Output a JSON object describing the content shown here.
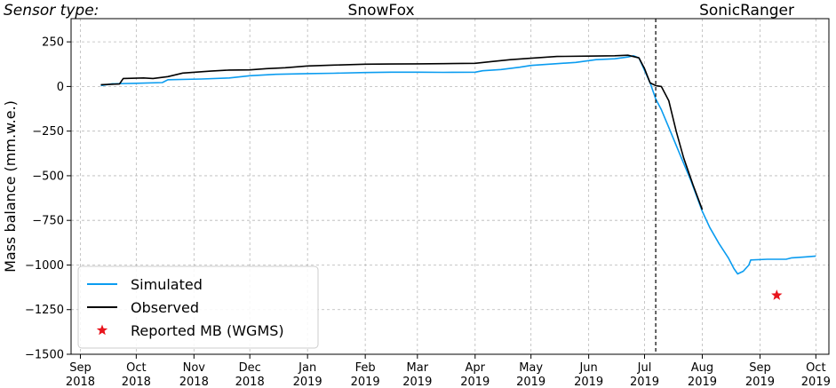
{
  "chart_data": {
    "type": "line",
    "ylabel": "Mass balance (mm.w.e.)",
    "ylim": [
      -1500,
      380
    ],
    "yticks": [
      250,
      0,
      -250,
      -500,
      -750,
      -1000,
      -1250,
      -1500
    ],
    "ytick_labels": [
      "250",
      "0",
      "−250",
      "−500",
      "−750",
      "−1000",
      "−1250",
      "−1500"
    ],
    "xlim": [
      "2018-08-27",
      "2019-10-08"
    ],
    "xticks": [
      {
        "date": "2018-09-01",
        "month": "Sep",
        "year": "2018"
      },
      {
        "date": "2018-10-01",
        "month": "Oct",
        "year": "2018"
      },
      {
        "date": "2018-11-01",
        "month": "Nov",
        "year": "2018"
      },
      {
        "date": "2018-12-01",
        "month": "Dec",
        "year": "2018"
      },
      {
        "date": "2019-01-01",
        "month": "Jan",
        "year": "2019"
      },
      {
        "date": "2019-02-01",
        "month": "Feb",
        "year": "2019"
      },
      {
        "date": "2019-03-01",
        "month": "Mar",
        "year": "2019"
      },
      {
        "date": "2019-04-01",
        "month": "Apr",
        "year": "2019"
      },
      {
        "date": "2019-05-01",
        "month": "May",
        "year": "2019"
      },
      {
        "date": "2019-06-01",
        "month": "Jun",
        "year": "2019"
      },
      {
        "date": "2019-07-01",
        "month": "Jul",
        "year": "2019"
      },
      {
        "date": "2019-08-01",
        "month": "Aug",
        "year": "2019"
      },
      {
        "date": "2019-09-01",
        "month": "Sep",
        "year": "2019"
      },
      {
        "date": "2019-10-01",
        "month": "Oct",
        "year": "2019"
      }
    ],
    "grid": true,
    "legend_position": "lower-left",
    "annotations": {
      "sensor_type_label": "Sensor type:",
      "left_sensor": "SnowFox",
      "right_sensor": "SonicRanger",
      "sensor_switch_date": "2019-07-07"
    },
    "series": [
      {
        "name": "Simulated",
        "color": "#0a9cf0",
        "points": [
          [
            "2018-09-12",
            5
          ],
          [
            "2018-09-18",
            15
          ],
          [
            "2018-10-01",
            18
          ],
          [
            "2018-10-15",
            22
          ],
          [
            "2018-10-18",
            38
          ],
          [
            "2018-11-05",
            42
          ],
          [
            "2018-11-20",
            48
          ],
          [
            "2018-12-01",
            60
          ],
          [
            "2018-12-15",
            68
          ],
          [
            "2019-01-01",
            72
          ],
          [
            "2019-01-15",
            74
          ],
          [
            "2019-02-01",
            78
          ],
          [
            "2019-02-15",
            80
          ],
          [
            "2019-03-01",
            80
          ],
          [
            "2019-03-15",
            79
          ],
          [
            "2019-04-01",
            80
          ],
          [
            "2019-04-05",
            88
          ],
          [
            "2019-04-15",
            95
          ],
          [
            "2019-04-25",
            108
          ],
          [
            "2019-05-01",
            118
          ],
          [
            "2019-05-15",
            128
          ],
          [
            "2019-05-25",
            135
          ],
          [
            "2019-06-05",
            150
          ],
          [
            "2019-06-15",
            155
          ],
          [
            "2019-06-22",
            165
          ],
          [
            "2019-06-25",
            172
          ],
          [
            "2019-06-28",
            160
          ],
          [
            "2019-07-01",
            90
          ],
          [
            "2019-07-04",
            20
          ],
          [
            "2019-07-07",
            -70
          ],
          [
            "2019-07-10",
            -130
          ],
          [
            "2019-07-14",
            -230
          ],
          [
            "2019-07-20",
            -380
          ],
          [
            "2019-07-26",
            -530
          ],
          [
            "2019-08-01",
            -700
          ],
          [
            "2019-08-05",
            -790
          ],
          [
            "2019-08-10",
            -880
          ],
          [
            "2019-08-15",
            -960
          ],
          [
            "2019-08-18",
            -1020
          ],
          [
            "2019-08-20",
            -1050
          ],
          [
            "2019-08-23",
            -1035
          ],
          [
            "2019-08-26",
            -1000
          ],
          [
            "2019-08-27",
            -972
          ],
          [
            "2019-09-05",
            -968
          ],
          [
            "2019-09-15",
            -968
          ],
          [
            "2019-09-18",
            -960
          ],
          [
            "2019-09-25",
            -955
          ],
          [
            "2019-10-01",
            -950
          ]
        ]
      },
      {
        "name": "Observed",
        "color": "#000000",
        "points": [
          [
            "2018-09-12",
            10
          ],
          [
            "2018-09-22",
            14
          ],
          [
            "2018-09-24",
            45
          ],
          [
            "2018-10-05",
            48
          ],
          [
            "2018-10-10",
            45
          ],
          [
            "2018-10-18",
            55
          ],
          [
            "2018-10-26",
            75
          ],
          [
            "2018-11-10",
            86
          ],
          [
            "2018-11-20",
            92
          ],
          [
            "2018-12-01",
            93
          ],
          [
            "2018-12-10",
            100
          ],
          [
            "2018-12-20",
            105
          ],
          [
            "2019-01-01",
            115
          ],
          [
            "2019-01-15",
            120
          ],
          [
            "2019-02-01",
            125
          ],
          [
            "2019-02-15",
            126
          ],
          [
            "2019-03-01",
            127
          ],
          [
            "2019-03-15",
            128
          ],
          [
            "2019-04-01",
            130
          ],
          [
            "2019-04-10",
            140
          ],
          [
            "2019-04-20",
            150
          ],
          [
            "2019-05-01",
            158
          ],
          [
            "2019-05-15",
            168
          ],
          [
            "2019-06-01",
            170
          ],
          [
            "2019-06-15",
            172
          ],
          [
            "2019-06-22",
            175
          ],
          [
            "2019-06-28",
            160
          ],
          [
            "2019-07-01",
            100
          ],
          [
            "2019-07-04",
            20
          ],
          [
            "2019-07-07",
            5
          ],
          [
            "2019-07-10",
            0
          ],
          [
            "2019-07-14",
            -80
          ],
          [
            "2019-07-18",
            -250
          ],
          [
            "2019-07-22",
            -400
          ],
          [
            "2019-07-27",
            -550
          ],
          [
            "2019-08-01",
            -690
          ]
        ]
      }
    ],
    "markers": [
      {
        "name": "Reported MB (WGMS)",
        "date": "2019-09-10",
        "value": -1170,
        "color": "#e8141c",
        "symbol": "star"
      }
    ]
  }
}
